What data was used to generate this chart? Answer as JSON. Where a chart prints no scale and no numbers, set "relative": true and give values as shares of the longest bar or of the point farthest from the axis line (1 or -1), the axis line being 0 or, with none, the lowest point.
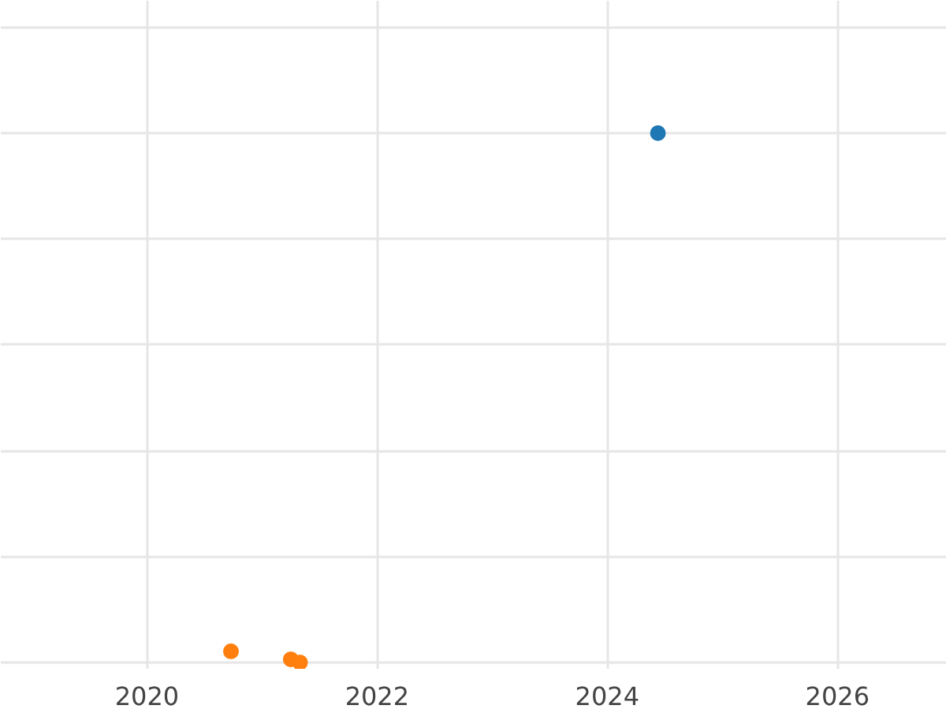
{
  "chart_data": {
    "type": "scatter",
    "relative": true,
    "xlim": [
      2018.73,
      2026.95
    ],
    "xticks": [
      2020,
      2022,
      2024,
      2026
    ],
    "grid": true,
    "marker": "circle",
    "series": [
      {
        "color": "#1f77b4",
        "x": [
          2024.44
        ],
        "values": [
          1
        ]
      },
      {
        "color": "#ff7f0e",
        "x": [
          2020.73,
          2021.25,
          2021.33
        ],
        "values": [
          0.021,
          0.006,
          0
        ]
      }
    ]
  }
}
